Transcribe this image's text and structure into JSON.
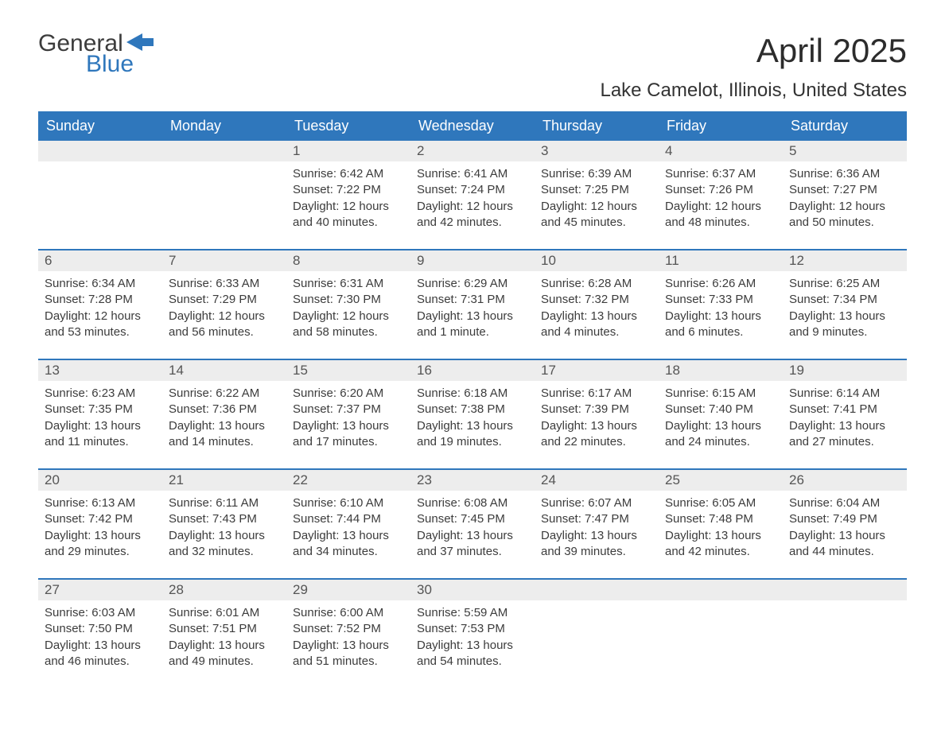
{
  "logo": {
    "word1": "General",
    "word2": "Blue",
    "flag_color": "#2f77bc"
  },
  "title": "April 2025",
  "subtitle": "Lake Camelot, Illinois, United States",
  "colors": {
    "header_bg": "#2f77bc",
    "header_text": "#ffffff",
    "daynum_bg": "#ededed",
    "daynum_text": "#555555",
    "body_text": "#3c3c3c",
    "rule": "#2f77bc",
    "page_bg": "#ffffff"
  },
  "typography": {
    "title_fontsize": 42,
    "subtitle_fontsize": 24,
    "dayheader_fontsize": 18,
    "daynum_fontsize": 17,
    "body_fontsize": 15
  },
  "day_names": [
    "Sunday",
    "Monday",
    "Tuesday",
    "Wednesday",
    "Thursday",
    "Friday",
    "Saturday"
  ],
  "weeks": [
    [
      {
        "n": "",
        "sunrise": "",
        "sunset": "",
        "daylight": ""
      },
      {
        "n": "",
        "sunrise": "",
        "sunset": "",
        "daylight": ""
      },
      {
        "n": "1",
        "sunrise": "Sunrise: 6:42 AM",
        "sunset": "Sunset: 7:22 PM",
        "daylight": "Daylight: 12 hours and 40 minutes."
      },
      {
        "n": "2",
        "sunrise": "Sunrise: 6:41 AM",
        "sunset": "Sunset: 7:24 PM",
        "daylight": "Daylight: 12 hours and 42 minutes."
      },
      {
        "n": "3",
        "sunrise": "Sunrise: 6:39 AM",
        "sunset": "Sunset: 7:25 PM",
        "daylight": "Daylight: 12 hours and 45 minutes."
      },
      {
        "n": "4",
        "sunrise": "Sunrise: 6:37 AM",
        "sunset": "Sunset: 7:26 PM",
        "daylight": "Daylight: 12 hours and 48 minutes."
      },
      {
        "n": "5",
        "sunrise": "Sunrise: 6:36 AM",
        "sunset": "Sunset: 7:27 PM",
        "daylight": "Daylight: 12 hours and 50 minutes."
      }
    ],
    [
      {
        "n": "6",
        "sunrise": "Sunrise: 6:34 AM",
        "sunset": "Sunset: 7:28 PM",
        "daylight": "Daylight: 12 hours and 53 minutes."
      },
      {
        "n": "7",
        "sunrise": "Sunrise: 6:33 AM",
        "sunset": "Sunset: 7:29 PM",
        "daylight": "Daylight: 12 hours and 56 minutes."
      },
      {
        "n": "8",
        "sunrise": "Sunrise: 6:31 AM",
        "sunset": "Sunset: 7:30 PM",
        "daylight": "Daylight: 12 hours and 58 minutes."
      },
      {
        "n": "9",
        "sunrise": "Sunrise: 6:29 AM",
        "sunset": "Sunset: 7:31 PM",
        "daylight": "Daylight: 13 hours and 1 minute."
      },
      {
        "n": "10",
        "sunrise": "Sunrise: 6:28 AM",
        "sunset": "Sunset: 7:32 PM",
        "daylight": "Daylight: 13 hours and 4 minutes."
      },
      {
        "n": "11",
        "sunrise": "Sunrise: 6:26 AM",
        "sunset": "Sunset: 7:33 PM",
        "daylight": "Daylight: 13 hours and 6 minutes."
      },
      {
        "n": "12",
        "sunrise": "Sunrise: 6:25 AM",
        "sunset": "Sunset: 7:34 PM",
        "daylight": "Daylight: 13 hours and 9 minutes."
      }
    ],
    [
      {
        "n": "13",
        "sunrise": "Sunrise: 6:23 AM",
        "sunset": "Sunset: 7:35 PM",
        "daylight": "Daylight: 13 hours and 11 minutes."
      },
      {
        "n": "14",
        "sunrise": "Sunrise: 6:22 AM",
        "sunset": "Sunset: 7:36 PM",
        "daylight": "Daylight: 13 hours and 14 minutes."
      },
      {
        "n": "15",
        "sunrise": "Sunrise: 6:20 AM",
        "sunset": "Sunset: 7:37 PM",
        "daylight": "Daylight: 13 hours and 17 minutes."
      },
      {
        "n": "16",
        "sunrise": "Sunrise: 6:18 AM",
        "sunset": "Sunset: 7:38 PM",
        "daylight": "Daylight: 13 hours and 19 minutes."
      },
      {
        "n": "17",
        "sunrise": "Sunrise: 6:17 AM",
        "sunset": "Sunset: 7:39 PM",
        "daylight": "Daylight: 13 hours and 22 minutes."
      },
      {
        "n": "18",
        "sunrise": "Sunrise: 6:15 AM",
        "sunset": "Sunset: 7:40 PM",
        "daylight": "Daylight: 13 hours and 24 minutes."
      },
      {
        "n": "19",
        "sunrise": "Sunrise: 6:14 AM",
        "sunset": "Sunset: 7:41 PM",
        "daylight": "Daylight: 13 hours and 27 minutes."
      }
    ],
    [
      {
        "n": "20",
        "sunrise": "Sunrise: 6:13 AM",
        "sunset": "Sunset: 7:42 PM",
        "daylight": "Daylight: 13 hours and 29 minutes."
      },
      {
        "n": "21",
        "sunrise": "Sunrise: 6:11 AM",
        "sunset": "Sunset: 7:43 PM",
        "daylight": "Daylight: 13 hours and 32 minutes."
      },
      {
        "n": "22",
        "sunrise": "Sunrise: 6:10 AM",
        "sunset": "Sunset: 7:44 PM",
        "daylight": "Daylight: 13 hours and 34 minutes."
      },
      {
        "n": "23",
        "sunrise": "Sunrise: 6:08 AM",
        "sunset": "Sunset: 7:45 PM",
        "daylight": "Daylight: 13 hours and 37 minutes."
      },
      {
        "n": "24",
        "sunrise": "Sunrise: 6:07 AM",
        "sunset": "Sunset: 7:47 PM",
        "daylight": "Daylight: 13 hours and 39 minutes."
      },
      {
        "n": "25",
        "sunrise": "Sunrise: 6:05 AM",
        "sunset": "Sunset: 7:48 PM",
        "daylight": "Daylight: 13 hours and 42 minutes."
      },
      {
        "n": "26",
        "sunrise": "Sunrise: 6:04 AM",
        "sunset": "Sunset: 7:49 PM",
        "daylight": "Daylight: 13 hours and 44 minutes."
      }
    ],
    [
      {
        "n": "27",
        "sunrise": "Sunrise: 6:03 AM",
        "sunset": "Sunset: 7:50 PM",
        "daylight": "Daylight: 13 hours and 46 minutes."
      },
      {
        "n": "28",
        "sunrise": "Sunrise: 6:01 AM",
        "sunset": "Sunset: 7:51 PM",
        "daylight": "Daylight: 13 hours and 49 minutes."
      },
      {
        "n": "29",
        "sunrise": "Sunrise: 6:00 AM",
        "sunset": "Sunset: 7:52 PM",
        "daylight": "Daylight: 13 hours and 51 minutes."
      },
      {
        "n": "30",
        "sunrise": "Sunrise: 5:59 AM",
        "sunset": "Sunset: 7:53 PM",
        "daylight": "Daylight: 13 hours and 54 minutes."
      },
      {
        "n": "",
        "sunrise": "",
        "sunset": "",
        "daylight": ""
      },
      {
        "n": "",
        "sunrise": "",
        "sunset": "",
        "daylight": ""
      },
      {
        "n": "",
        "sunrise": "",
        "sunset": "",
        "daylight": ""
      }
    ]
  ]
}
